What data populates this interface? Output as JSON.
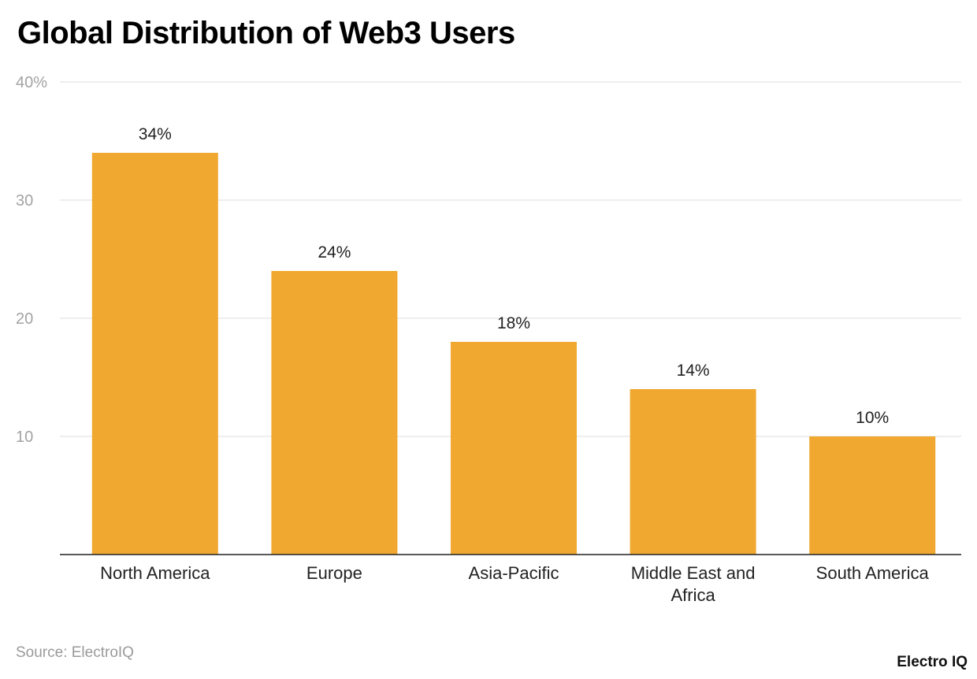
{
  "chart_data": {
    "type": "bar",
    "title": "Global Distribution of Web3 Users",
    "categories": [
      "North America",
      "Europe",
      "Asia-Pacific",
      "Middle East and Africa",
      "South America"
    ],
    "category_lines": [
      [
        "North America"
      ],
      [
        "Europe"
      ],
      [
        "Asia-Pacific"
      ],
      [
        "Middle East and",
        "Africa"
      ],
      [
        "South America"
      ]
    ],
    "values": [
      34,
      24,
      18,
      14,
      10
    ],
    "value_labels": [
      "34%",
      "24%",
      "18%",
      "14%",
      "10%"
    ],
    "y_ticks": [
      {
        "value": 10,
        "label": "10"
      },
      {
        "value": 20,
        "label": "20"
      },
      {
        "value": 30,
        "label": "30"
      },
      {
        "value": 40,
        "label": "40%"
      }
    ],
    "ylim": [
      0,
      40
    ],
    "xlabel": "",
    "ylabel": "",
    "grid": true,
    "bar_color": "#F0A830"
  },
  "source": "Source: ElectroIQ",
  "brand": "Electro IQ"
}
